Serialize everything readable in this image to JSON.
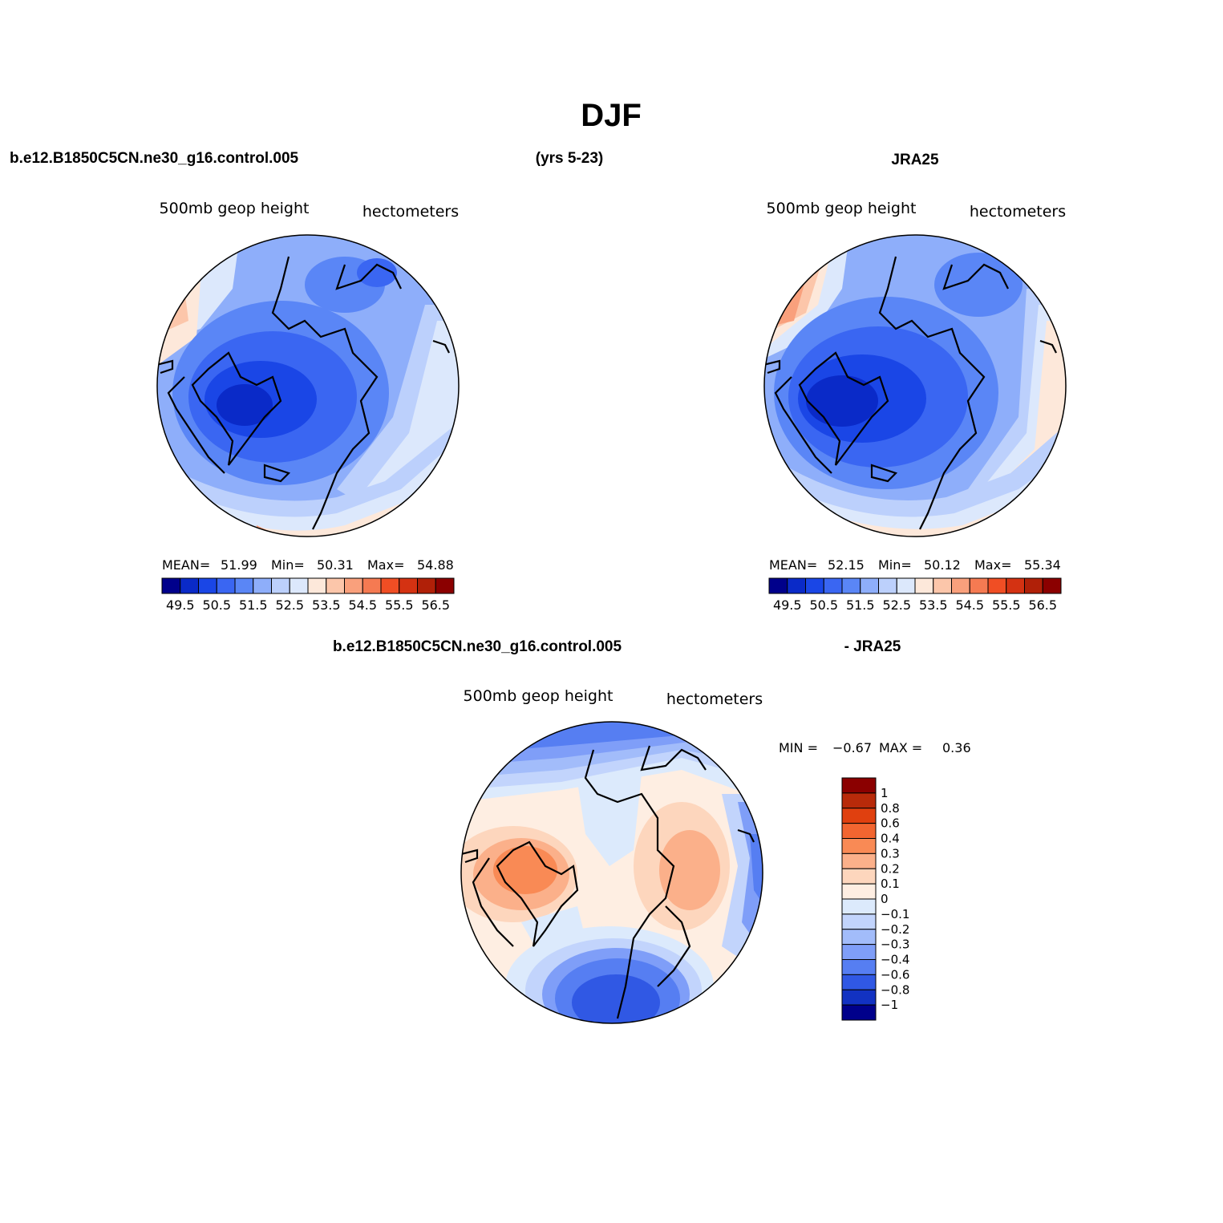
{
  "page": {
    "title": "DJF",
    "model_name": "b.e12.B1850C5CN.ne30_g16.control.005",
    "years": "(yrs 5-23)",
    "obs_name": "JRA25",
    "diff_left": "b.e12.B1850C5CN.ne30_g16.control.005",
    "diff_right": "- JRA25"
  },
  "chart_data": [
    {
      "type": "heatmap",
      "id": "model",
      "title": "500mb geop height",
      "units": "hectometers",
      "projection": "north polar stereographic",
      "stats": {
        "mean_label": "MEAN=",
        "mean": "51.99",
        "min_label": "Min=",
        "min": "50.31",
        "max_label": "Max=",
        "max": "54.88"
      },
      "contour_levels": [
        49.5,
        50,
        50.5,
        51,
        51.5,
        52,
        52.5,
        53,
        53.5,
        54,
        54.5,
        55,
        55.5,
        56,
        56.5
      ],
      "colors": [
        "#00008b",
        "#0a2ac8",
        "#1a46e6",
        "#3a66f2",
        "#5a86f6",
        "#8eaefa",
        "#bcd0fc",
        "#dce8fc",
        "#fde8da",
        "#fcc6aa",
        "#f9a07c",
        "#f57a52",
        "#f04e24",
        "#d43212",
        "#b02008",
        "#8b0000"
      ],
      "colorbar_tick_labels": [
        "49.5",
        "50.5",
        "51.5",
        "52.5",
        "53.5",
        "54.5",
        "55.5",
        "56.5"
      ]
    },
    {
      "type": "heatmap",
      "id": "obs",
      "title": "500mb geop height",
      "units": "hectometers",
      "projection": "north polar stereographic",
      "stats": {
        "mean_label": "MEAN=",
        "mean": "52.15",
        "min_label": "Min=",
        "min": "50.12",
        "max_label": "Max=",
        "max": "55.34"
      },
      "contour_levels": [
        49.5,
        50,
        50.5,
        51,
        51.5,
        52,
        52.5,
        53,
        53.5,
        54,
        54.5,
        55,
        55.5,
        56,
        56.5
      ],
      "colors": [
        "#00008b",
        "#0a2ac8",
        "#1a46e6",
        "#3a66f2",
        "#5a86f6",
        "#8eaefa",
        "#bcd0fc",
        "#dce8fc",
        "#fde8da",
        "#fcc6aa",
        "#f9a07c",
        "#f57a52",
        "#f04e24",
        "#d43212",
        "#b02008",
        "#8b0000"
      ],
      "colorbar_tick_labels": [
        "49.5",
        "50.5",
        "51.5",
        "52.5",
        "53.5",
        "54.5",
        "55.5",
        "56.5"
      ]
    },
    {
      "type": "heatmap",
      "id": "diff",
      "title": "500mb geop height",
      "units": "hectometers",
      "projection": "north polar stereographic",
      "stats": {
        "min_label": "MIN =",
        "min": "−0.67",
        "max_label": "MAX =",
        "max": "0.36"
      },
      "contour_levels": [
        -1,
        -0.8,
        -0.6,
        -0.4,
        -0.3,
        -0.2,
        -0.1,
        0,
        0.1,
        0.2,
        0.3,
        0.4,
        0.6,
        0.8,
        1
      ],
      "colors": [
        "#8b0000",
        "#b82a0a",
        "#e0400f",
        "#f26530",
        "#f98a55",
        "#fbb08a",
        "#fdd6bd",
        "#feeee2",
        "#dceafc",
        "#c2d4fc",
        "#a2bcfa",
        "#7f9ef8",
        "#567ef2",
        "#3058e4",
        "#1232c2",
        "#00008b"
      ],
      "colorbar_tick_labels": [
        "1",
        "0.8",
        "0.6",
        "0.4",
        "0.3",
        "0.2",
        "0.1",
        "0",
        "−0.1",
        "−0.2",
        "−0.3",
        "−0.4",
        "−0.6",
        "−0.8",
        "−1"
      ]
    }
  ]
}
